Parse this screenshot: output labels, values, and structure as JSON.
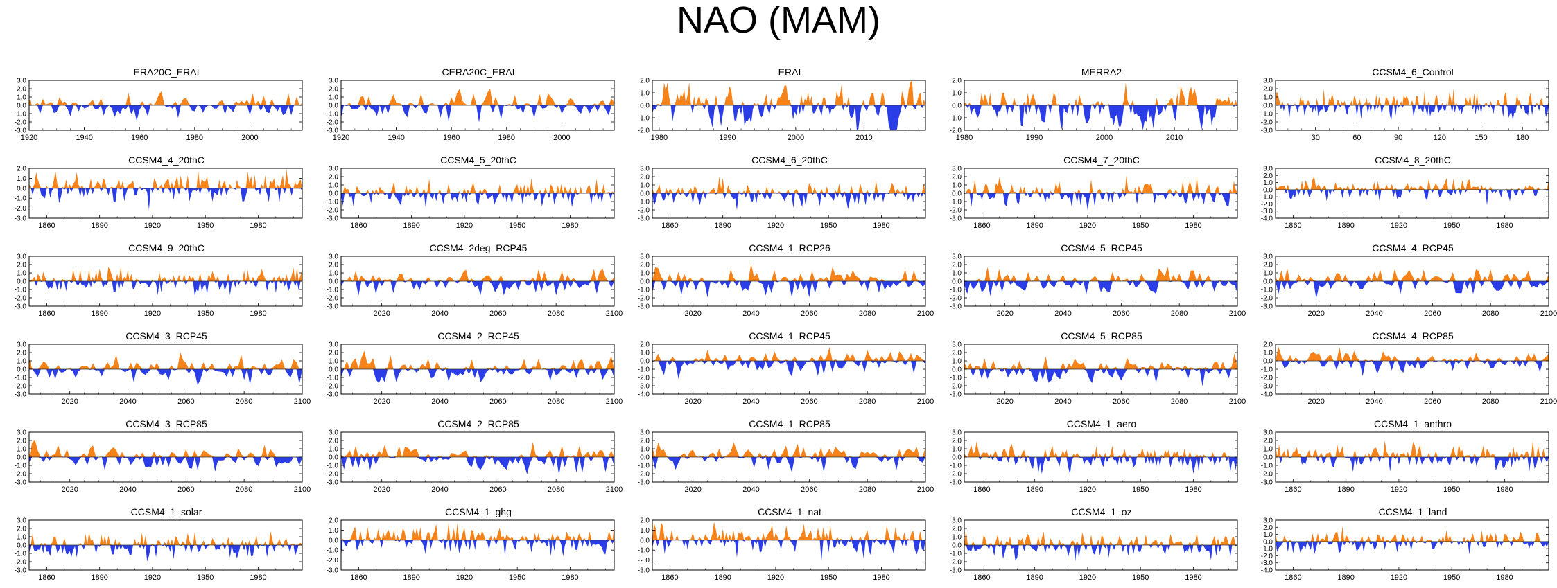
{
  "title": "NAO (MAM)",
  "colors": {
    "positive": "#f5831a",
    "negative": "#2a3de6",
    "axis": "#000000"
  },
  "chart_data": [
    {
      "type": "area",
      "title": "ERA20C_ERAI",
      "xlim": [
        1920,
        2019
      ],
      "xticks": [
        "1920",
        "1940",
        "1960",
        "1980",
        "2000"
      ],
      "ylim": [
        -3.0,
        3.0
      ],
      "yticks": [
        "3.0",
        "2.0",
        "1.0",
        "0.0",
        "-1.0",
        "-2.0",
        "-3.0"
      ],
      "style": "spiky"
    },
    {
      "type": "area",
      "title": "CERA20C_ERAI",
      "xlim": [
        1920,
        2019
      ],
      "xticks": [
        "1920",
        "1940",
        "1960",
        "1980",
        "2000"
      ],
      "ylim": [
        -3.0,
        3.0
      ],
      "yticks": [
        "3.0",
        "2.0",
        "1.0",
        "0.0",
        "-1.0",
        "-2.0",
        "-3.0"
      ],
      "style": "spiky"
    },
    {
      "type": "area",
      "title": "ERAI",
      "xlim": [
        1979,
        2019
      ],
      "xticks": [
        "1980",
        "1990",
        "2000",
        "2010"
      ],
      "ylim": [
        -2.0,
        2.0
      ],
      "yticks": [
        "2.0",
        "1.0",
        "0.0",
        "-1.0",
        "-2.0"
      ],
      "style": "smooth"
    },
    {
      "type": "area",
      "title": "MERRA2",
      "xlim": [
        1980,
        2019
      ],
      "xticks": [
        "1980",
        "1990",
        "2000",
        "2010"
      ],
      "ylim": [
        -2.0,
        2.0
      ],
      "yticks": [
        "2.0",
        "1.0",
        "0.0",
        "-1.0",
        "-2.0"
      ],
      "style": "smooth"
    },
    {
      "type": "area",
      "title": "CCSM4_6_Control",
      "xlim": [
        1,
        199
      ],
      "xticks": [
        "30",
        "60",
        "90",
        "120",
        "150",
        "180"
      ],
      "ylim": [
        -3.0,
        3.0
      ],
      "yticks": [
        "3.0",
        "2.0",
        "1.0",
        "0.0",
        "-1.0",
        "-2.0",
        "-3.0"
      ],
      "style": "spiky"
    },
    {
      "type": "area",
      "title": "CCSM4_4_20thC",
      "xlim": [
        1850,
        2005
      ],
      "xticks": [
        "1860",
        "1890",
        "1920",
        "1950",
        "1980"
      ],
      "ylim": [
        -3.0,
        2.0
      ],
      "yticks": [
        "2.0",
        "1.0",
        "0.0",
        "-1.0",
        "-2.0",
        "-3.0"
      ],
      "style": "spiky"
    },
    {
      "type": "area",
      "title": "CCSM4_5_20thC",
      "xlim": [
        1850,
        2005
      ],
      "xticks": [
        "1860",
        "1890",
        "1920",
        "1950",
        "1980"
      ],
      "ylim": [
        -3.0,
        3.0
      ],
      "yticks": [
        "3.0",
        "2.0",
        "1.0",
        "0.0",
        "-1.0",
        "-2.0",
        "-3.0"
      ],
      "style": "spiky"
    },
    {
      "type": "area",
      "title": "CCSM4_6_20thC",
      "xlim": [
        1850,
        2005
      ],
      "xticks": [
        "1860",
        "1890",
        "1920",
        "1950",
        "1980"
      ],
      "ylim": [
        -3.0,
        3.0
      ],
      "yticks": [
        "3.0",
        "2.0",
        "1.0",
        "0.0",
        "-1.0",
        "-2.0",
        "-3.0"
      ],
      "style": "spiky"
    },
    {
      "type": "area",
      "title": "CCSM4_7_20thC",
      "xlim": [
        1850,
        2005
      ],
      "xticks": [
        "1860",
        "1890",
        "1920",
        "1950",
        "1980"
      ],
      "ylim": [
        -3.0,
        3.0
      ],
      "yticks": [
        "3.0",
        "2.0",
        "1.0",
        "0.0",
        "-1.0",
        "-2.0",
        "-3.0"
      ],
      "style": "spiky"
    },
    {
      "type": "area",
      "title": "CCSM4_8_20thC",
      "xlim": [
        1850,
        2005
      ],
      "xticks": [
        "1860",
        "1890",
        "1920",
        "1950",
        "1980"
      ],
      "ylim": [
        -4.0,
        3.0
      ],
      "yticks": [
        "3.0",
        "2.0",
        "1.0",
        "0.0",
        "-1.0",
        "-2.0",
        "-3.0",
        "-4.0"
      ],
      "style": "spiky"
    },
    {
      "type": "area",
      "title": "CCSM4_9_20thC",
      "xlim": [
        1850,
        2005
      ],
      "xticks": [
        "1860",
        "1890",
        "1920",
        "1950",
        "1980"
      ],
      "ylim": [
        -3.0,
        3.0
      ],
      "yticks": [
        "3.0",
        "2.0",
        "1.0",
        "0.0",
        "-1.0",
        "-2.0",
        "-3.0"
      ],
      "style": "spiky"
    },
    {
      "type": "area",
      "title": "CCSM4_2deg_RCP45",
      "xlim": [
        2006,
        2100
      ],
      "xticks": [
        "2020",
        "2040",
        "2060",
        "2080",
        "2100"
      ],
      "ylim": [
        -3.0,
        3.0
      ],
      "yticks": [
        "3.0",
        "2.0",
        "1.0",
        "0.0",
        "-1.0",
        "-2.0",
        "-3.0"
      ],
      "style": "spiky"
    },
    {
      "type": "area",
      "title": "CCSM4_1_RCP26",
      "xlim": [
        2006,
        2100
      ],
      "xticks": [
        "2020",
        "2040",
        "2060",
        "2080",
        "2100"
      ],
      "ylim": [
        -3.0,
        3.0
      ],
      "yticks": [
        "3.0",
        "2.0",
        "1.0",
        "0.0",
        "-1.0",
        "-2.0",
        "-3.0"
      ],
      "style": "spiky"
    },
    {
      "type": "area",
      "title": "CCSM4_5_RCP45",
      "xlim": [
        2006,
        2100
      ],
      "xticks": [
        "2020",
        "2040",
        "2060",
        "2080",
        "2100"
      ],
      "ylim": [
        -3.0,
        3.0
      ],
      "yticks": [
        "3.0",
        "2.0",
        "1.0",
        "0.0",
        "-1.0",
        "-2.0",
        "-3.0"
      ],
      "style": "spiky"
    },
    {
      "type": "area",
      "title": "CCSM4_4_RCP45",
      "xlim": [
        2006,
        2100
      ],
      "xticks": [
        "2020",
        "2040",
        "2060",
        "2080",
        "2100"
      ],
      "ylim": [
        -3.0,
        3.0
      ],
      "yticks": [
        "3.0",
        "2.0",
        "1.0",
        "0.0",
        "-1.0",
        "-2.0",
        "-3.0"
      ],
      "style": "spiky"
    },
    {
      "type": "area",
      "title": "CCSM4_3_RCP45",
      "xlim": [
        2006,
        2100
      ],
      "xticks": [
        "2020",
        "2040",
        "2060",
        "2080",
        "2100"
      ],
      "ylim": [
        -3.0,
        3.0
      ],
      "yticks": [
        "3.0",
        "2.0",
        "1.0",
        "0.0",
        "-1.0",
        "-2.0",
        "-3.0"
      ],
      "style": "spiky"
    },
    {
      "type": "area",
      "title": "CCSM4_2_RCP45",
      "xlim": [
        2006,
        2100
      ],
      "xticks": [
        "2020",
        "2040",
        "2060",
        "2080",
        "2100"
      ],
      "ylim": [
        -3.0,
        3.0
      ],
      "yticks": [
        "3.0",
        "2.0",
        "1.0",
        "0.0",
        "-1.0",
        "-2.0",
        "-3.0"
      ],
      "style": "spiky"
    },
    {
      "type": "area",
      "title": "CCSM4_1_RCP45",
      "xlim": [
        2006,
        2100
      ],
      "xticks": [
        "2020",
        "2040",
        "2060",
        "2080",
        "2100"
      ],
      "ylim": [
        -4.0,
        2.0
      ],
      "yticks": [
        "2.0",
        "1.0",
        "0.0",
        "-1.0",
        "-2.0",
        "-3.0",
        "-4.0"
      ],
      "style": "spiky"
    },
    {
      "type": "area",
      "title": "CCSM4_5_RCP85",
      "xlim": [
        2006,
        2100
      ],
      "xticks": [
        "2020",
        "2040",
        "2060",
        "2080",
        "2100"
      ],
      "ylim": [
        -3.0,
        3.0
      ],
      "yticks": [
        "3.0",
        "2.0",
        "1.0",
        "0.0",
        "-1.0",
        "-2.0",
        "-3.0"
      ],
      "style": "spiky"
    },
    {
      "type": "area",
      "title": "CCSM4_4_RCP85",
      "xlim": [
        2006,
        2100
      ],
      "xticks": [
        "2020",
        "2040",
        "2060",
        "2080",
        "2100"
      ],
      "ylim": [
        -4.0,
        2.0
      ],
      "yticks": [
        "2.0",
        "1.0",
        "0.0",
        "-1.0",
        "-2.0",
        "-3.0",
        "-4.0"
      ],
      "style": "spiky"
    },
    {
      "type": "area",
      "title": "CCSM4_3_RCP85",
      "xlim": [
        2006,
        2100
      ],
      "xticks": [
        "2020",
        "2040",
        "2060",
        "2080",
        "2100"
      ],
      "ylim": [
        -3.0,
        3.0
      ],
      "yticks": [
        "3.0",
        "2.0",
        "1.0",
        "0.0",
        "-1.0",
        "-2.0",
        "-3.0"
      ],
      "style": "spiky"
    },
    {
      "type": "area",
      "title": "CCSM4_2_RCP85",
      "xlim": [
        2006,
        2100
      ],
      "xticks": [
        "2020",
        "2040",
        "2060",
        "2080",
        "2100"
      ],
      "ylim": [
        -3.0,
        3.0
      ],
      "yticks": [
        "3.0",
        "2.0",
        "1.0",
        "0.0",
        "-1.0",
        "-2.0",
        "-3.0"
      ],
      "style": "spiky"
    },
    {
      "type": "area",
      "title": "CCSM4_1_RCP85",
      "xlim": [
        2006,
        2100
      ],
      "xticks": [
        "2020",
        "2040",
        "2060",
        "2080",
        "2100"
      ],
      "ylim": [
        -3.0,
        3.0
      ],
      "yticks": [
        "3.0",
        "2.0",
        "1.0",
        "0.0",
        "-1.0",
        "-2.0",
        "-3.0"
      ],
      "style": "spiky"
    },
    {
      "type": "area",
      "title": "CCSM4_1_aero",
      "xlim": [
        1850,
        2005
      ],
      "xticks": [
        "1860",
        "1890",
        "1920",
        "1950",
        "1980"
      ],
      "ylim": [
        -3.0,
        3.0
      ],
      "yticks": [
        "3.0",
        "2.0",
        "1.0",
        "0.0",
        "-1.0",
        "-2.0",
        "-3.0"
      ],
      "style": "spiky"
    },
    {
      "type": "area",
      "title": "CCSM4_1_anthro",
      "xlim": [
        1850,
        2005
      ],
      "xticks": [
        "1860",
        "1890",
        "1920",
        "1950",
        "1980"
      ],
      "ylim": [
        -3.0,
        3.0
      ],
      "yticks": [
        "3.0",
        "2.0",
        "1.0",
        "0.0",
        "-1.0",
        "-2.0",
        "-3.0"
      ],
      "style": "spiky"
    },
    {
      "type": "area",
      "title": "CCSM4_1_solar",
      "xlim": [
        1850,
        2005
      ],
      "xticks": [
        "1860",
        "1890",
        "1920",
        "1950",
        "1980"
      ],
      "ylim": [
        -3.0,
        3.0
      ],
      "yticks": [
        "3.0",
        "2.0",
        "1.0",
        "0.0",
        "-1.0",
        "-2.0",
        "-3.0"
      ],
      "style": "spiky"
    },
    {
      "type": "area",
      "title": "CCSM4_1_ghg",
      "xlim": [
        1850,
        2005
      ],
      "xticks": [
        "1860",
        "1890",
        "1920",
        "1950",
        "1980"
      ],
      "ylim": [
        -3.0,
        2.0
      ],
      "yticks": [
        "2.0",
        "1.0",
        "0.0",
        "-1.0",
        "-2.0",
        "-3.0"
      ],
      "style": "spiky"
    },
    {
      "type": "area",
      "title": "CCSM4_1_nat",
      "xlim": [
        1850,
        2005
      ],
      "xticks": [
        "1860",
        "1890",
        "1920",
        "1950",
        "1980"
      ],
      "ylim": [
        -3.0,
        2.0
      ],
      "yticks": [
        "2.0",
        "1.0",
        "0.0",
        "-1.0",
        "-2.0",
        "-3.0"
      ],
      "style": "spiky"
    },
    {
      "type": "area",
      "title": "CCSM4_1_oz",
      "xlim": [
        1850,
        2005
      ],
      "xticks": [
        "1860",
        "1890",
        "1920",
        "1950",
        "1980"
      ],
      "ylim": [
        -3.0,
        3.0
      ],
      "yticks": [
        "3.0",
        "2.0",
        "1.0",
        "0.0",
        "-1.0",
        "-2.0",
        "-3.0"
      ],
      "style": "spiky"
    },
    {
      "type": "area",
      "title": "CCSM4_1_land",
      "xlim": [
        1850,
        2005
      ],
      "xticks": [
        "1860",
        "1890",
        "1920",
        "1950",
        "1980"
      ],
      "ylim": [
        -4.0,
        3.0
      ],
      "yticks": [
        "3.0",
        "2.0",
        "1.0",
        "0.0",
        "-1.0",
        "-2.0",
        "-3.0",
        "-4.0"
      ],
      "style": "spiky"
    }
  ]
}
